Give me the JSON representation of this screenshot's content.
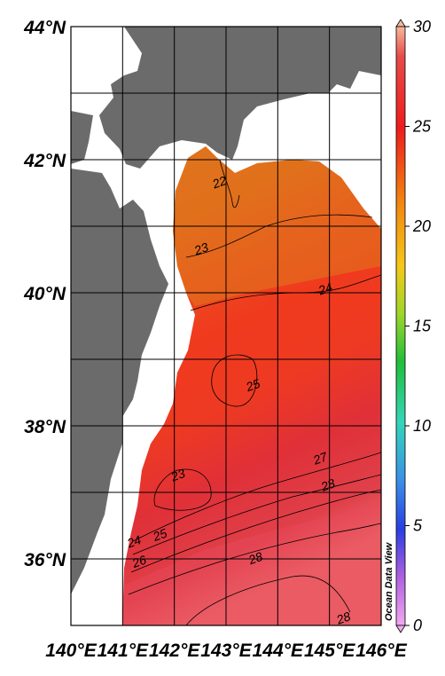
{
  "map": {
    "lat_labels": [
      "44°N",
      "42°N",
      "40°N",
      "38°N",
      "36°N"
    ],
    "lon_labels": [
      "140°E",
      "141°E",
      "142°E",
      "143°E",
      "144°E",
      "145°E",
      "146°E"
    ],
    "lon_range": [
      140,
      146
    ],
    "lat_range": [
      35,
      44
    ],
    "credit": "Ocean Data View",
    "colors": {
      "land": "#6b6b6b",
      "ocean_nodata": "#ffffff",
      "grid": "#000000"
    }
  },
  "colorbar": {
    "ticks": [
      "30",
      "25",
      "20",
      "15",
      "10",
      "5",
      "0"
    ],
    "range": [
      0,
      30
    ]
  },
  "contours": {
    "labels": [
      {
        "text": "22",
        "lon": 142.9,
        "lat": 41.6
      },
      {
        "text": "23",
        "lon": 142.55,
        "lat": 40.6
      },
      {
        "text": "24",
        "lon": 144.95,
        "lat": 40.0
      },
      {
        "text": "25",
        "lon": 143.55,
        "lat": 38.55
      },
      {
        "text": "23",
        "lon": 142.1,
        "lat": 37.2
      },
      {
        "text": "27",
        "lon": 144.85,
        "lat": 37.45
      },
      {
        "text": "28",
        "lon": 145.0,
        "lat": 37.05
      },
      {
        "text": "24",
        "lon": 141.25,
        "lat": 36.2
      },
      {
        "text": "25",
        "lon": 141.75,
        "lat": 36.3
      },
      {
        "text": "26",
        "lon": 141.35,
        "lat": 35.9
      },
      {
        "text": "28",
        "lon": 143.6,
        "lat": 35.95
      },
      {
        "text": "28",
        "lon": 145.3,
        "lat": 35.05
      }
    ]
  }
}
